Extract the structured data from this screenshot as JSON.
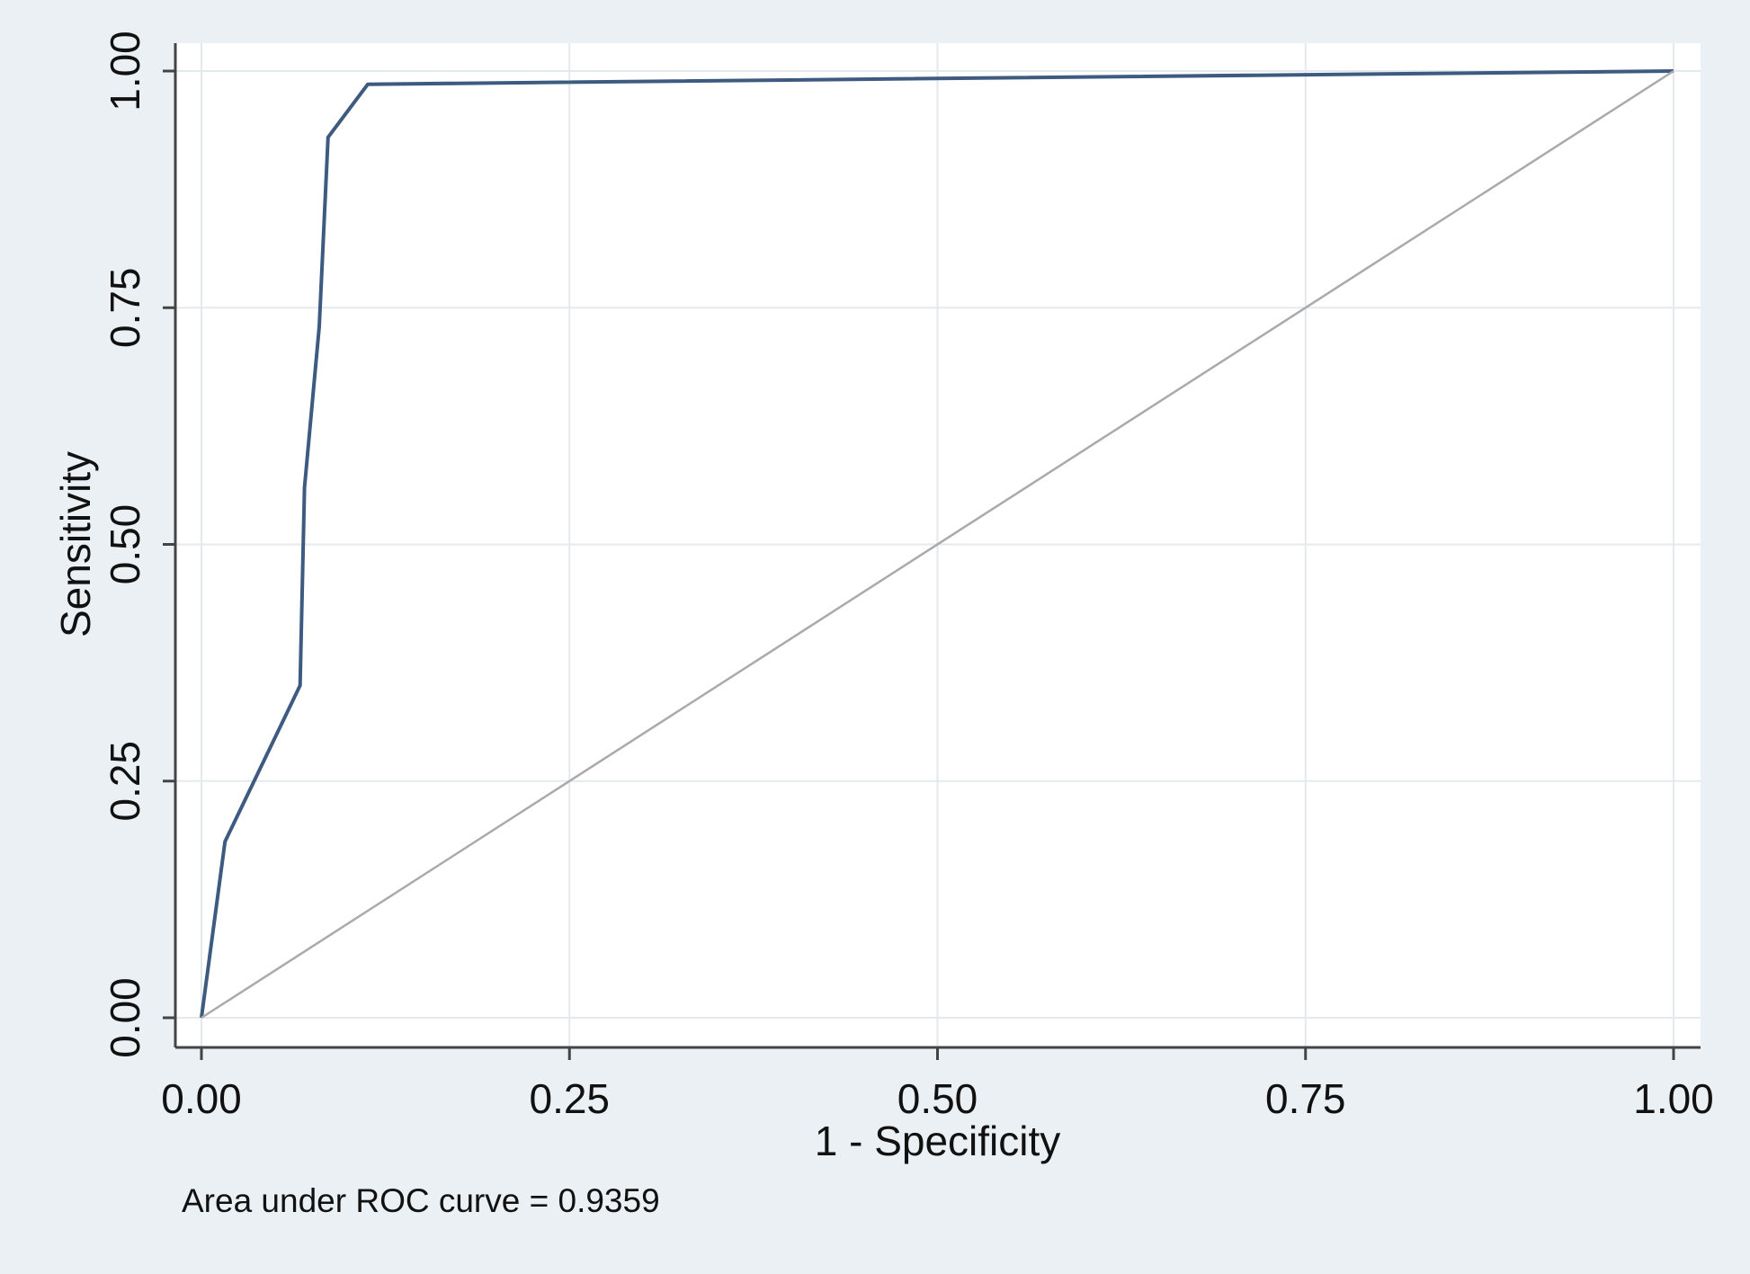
{
  "chart_data": {
    "type": "line",
    "xlabel": "1 - Specificity",
    "ylabel": "Sensitivity",
    "xlim": [
      0,
      1
    ],
    "ylim": [
      0,
      1
    ],
    "x_ticks": [
      "0.00",
      "0.25",
      "0.50",
      "0.75",
      "1.00"
    ],
    "y_ticks": [
      "0.00",
      "0.25",
      "0.50",
      "0.75",
      "1.00"
    ],
    "grid": true,
    "series": [
      {
        "color": "#3d5a80",
        "points": [
          [
            0.0,
            0.0
          ],
          [
            0.016,
            0.186
          ],
          [
            0.067,
            0.351
          ],
          [
            0.07,
            0.56
          ],
          [
            0.08,
            0.73
          ],
          [
            0.086,
            0.93
          ],
          [
            0.113,
            0.986
          ],
          [
            1.0,
            1.0
          ]
        ]
      },
      {
        "color": "#aaaaaa",
        "points": [
          [
            0,
            0
          ],
          [
            1,
            1
          ]
        ]
      }
    ],
    "annotation": "Area under ROC curve = 0.9359"
  }
}
